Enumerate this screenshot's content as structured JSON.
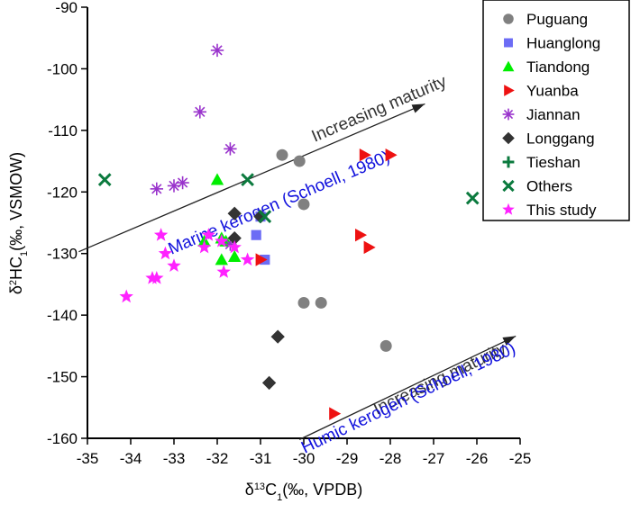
{
  "chart_data": {
    "type": "scatter",
    "xlabel": {
      "prefix": "δ",
      "sup": "13",
      "main": "C",
      "sub": "1",
      "suffix": "(‰, VPDB)"
    },
    "ylabel": {
      "prefix": "δ",
      "sup": "2",
      "main": "HC",
      "sub": "1",
      "suffix": "(‰, VSMOW)"
    },
    "xlim": [
      -35,
      -25
    ],
    "ylim": [
      -160,
      -90
    ],
    "xticks": [
      -35,
      -34,
      -33,
      -32,
      -31,
      -30,
      -29,
      -28,
      -27,
      -26,
      -25
    ],
    "yticks": [
      -160,
      -150,
      -140,
      -130,
      -120,
      -110,
      -100,
      -90
    ],
    "grid": false,
    "legend_position": "top-right",
    "annotations": [
      {
        "text": "Increasing maturity",
        "color": "#333333"
      },
      {
        "text": "Marine kerogen (Schoell, 1980)",
        "color": "#1010dd"
      },
      {
        "text": "Increasing maturity",
        "color": "#333333"
      },
      {
        "text": "Humic kerogen (Schoell, 1980)",
        "color": "#1010dd"
      }
    ],
    "trend_lines": [
      {
        "x": [
          -35.2,
          -27.2
        ],
        "y": [
          -129.7,
          -105.7
        ]
      },
      {
        "x": [
          -30.1,
          -25.1
        ],
        "y": [
          -160.2,
          -143.4
        ]
      }
    ],
    "series": [
      {
        "name": "Puguang",
        "marker": "circle",
        "color": "#808080",
        "points": [
          [
            -30.5,
            -114
          ],
          [
            -30.1,
            -115
          ],
          [
            -30,
            -122
          ],
          [
            -30,
            -138
          ],
          [
            -29.6,
            -138
          ],
          [
            -28.1,
            -145
          ]
        ]
      },
      {
        "name": "Huanglong",
        "marker": "square",
        "color": "#6c6cf5",
        "points": [
          [
            -31.1,
            -127
          ],
          [
            -31,
            -124
          ],
          [
            -30.9,
            -131
          ]
        ]
      },
      {
        "name": "Tiandong",
        "marker": "triangle-up",
        "color": "#00ee00",
        "points": [
          [
            -32,
            -118
          ],
          [
            -32.3,
            -128
          ],
          [
            -31.9,
            -127.5
          ],
          [
            -31.9,
            -131
          ],
          [
            -31.8,
            -128
          ],
          [
            -31.6,
            -130.5
          ]
        ]
      },
      {
        "name": "Yuanba",
        "marker": "triangle-right",
        "color": "#ee1111",
        "points": [
          [
            -31,
            -131
          ],
          [
            -28.6,
            -114
          ],
          [
            -28,
            -114
          ],
          [
            -28.7,
            -127
          ],
          [
            -28.5,
            -129
          ],
          [
            -29.3,
            -156
          ]
        ]
      },
      {
        "name": "Jiannan",
        "marker": "asterisk",
        "color": "#9933cc",
        "points": [
          [
            -32,
            -97
          ],
          [
            -32.4,
            -107
          ],
          [
            -31.7,
            -113
          ],
          [
            -33.4,
            -119.5
          ],
          [
            -33,
            -119
          ],
          [
            -32.8,
            -118.5
          ],
          [
            -31.7,
            -128.5
          ]
        ]
      },
      {
        "name": "Longgang",
        "marker": "diamond",
        "color": "#333333",
        "points": [
          [
            -31.6,
            -123.5
          ],
          [
            -31.6,
            -127.5
          ],
          [
            -31,
            -124
          ],
          [
            -30.6,
            -143.5
          ],
          [
            -30.8,
            -151
          ]
        ]
      },
      {
        "name": "Tieshan",
        "marker": "plus",
        "color": "#0b7a3e",
        "points": []
      },
      {
        "name": "Others",
        "marker": "x",
        "color": "#0b7a3e",
        "points": [
          [
            -34.6,
            -118
          ],
          [
            -31.3,
            -118
          ],
          [
            -30.9,
            -124
          ],
          [
            -26.1,
            -121
          ]
        ]
      },
      {
        "name": "This study",
        "marker": "star",
        "color": "#ff22ff",
        "points": [
          [
            -34.1,
            -137
          ],
          [
            -33.5,
            -134
          ],
          [
            -33.4,
            -134
          ],
          [
            -33.3,
            -127
          ],
          [
            -33.2,
            -130
          ],
          [
            -33,
            -132
          ],
          [
            -32.2,
            -127
          ],
          [
            -32.3,
            -129
          ],
          [
            -31.9,
            -128
          ],
          [
            -31.85,
            -133
          ],
          [
            -31.6,
            -129
          ],
          [
            -31.3,
            -131
          ]
        ]
      }
    ]
  }
}
